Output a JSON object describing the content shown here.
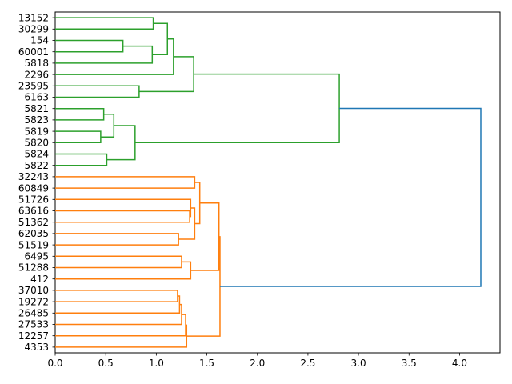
{
  "chart_data": {
    "type": "dendrogram",
    "orientation": "left",
    "title": "",
    "xlabel": "",
    "ylabel": "",
    "xlim": [
      0,
      4.4
    ],
    "x_ticks": [
      "0.0",
      "0.5",
      "1.0",
      "1.5",
      "2.0",
      "2.5",
      "3.0",
      "3.5",
      "4.0"
    ],
    "leaves": [
      "13152",
      "30299",
      "154",
      "60001",
      "5818",
      "2296",
      "23595",
      "6163",
      "5821",
      "5823",
      "5819",
      "5820",
      "5824",
      "5822",
      "32243",
      "60849",
      "51726",
      "63616",
      "51362",
      "62035",
      "51519",
      "6495",
      "51288",
      "412",
      "37010",
      "19272",
      "26485",
      "27533",
      "12257",
      "4353"
    ],
    "colors": {
      "cluster_green": "#2ca02c",
      "cluster_orange": "#ff7f0e",
      "above_threshold": "#1f77b4"
    },
    "merges": [
      {
        "a": "13152",
        "b": "30299",
        "height": 0.97,
        "color": "green"
      },
      {
        "a": "154",
        "b": "60001",
        "height": 0.67,
        "color": "green"
      },
      {
        "a": "{154,60001}",
        "b": "5818",
        "height": 0.96,
        "color": "green"
      },
      {
        "a": "{13152,30299}",
        "b": "{154,60001,5818}",
        "height": 1.11,
        "color": "green"
      },
      {
        "a": "{13152..5818}",
        "b": "2296",
        "height": 1.17,
        "color": "green"
      },
      {
        "a": "23595",
        "b": "6163",
        "height": 0.83,
        "color": "green"
      },
      {
        "a": "{13152..2296}",
        "b": "{23595,6163}",
        "height": 1.37,
        "color": "green"
      },
      {
        "a": "5821",
        "b": "5823",
        "height": 0.48,
        "color": "green"
      },
      {
        "a": "5819",
        "b": "5820",
        "height": 0.45,
        "color": "green"
      },
      {
        "a": "{5821,5823}",
        "b": "{5819,5820}",
        "height": 0.58,
        "color": "green"
      },
      {
        "a": "5824",
        "b": "5822",
        "height": 0.51,
        "color": "green"
      },
      {
        "a": "{5821..5820}",
        "b": "{5824,5822}",
        "height": 0.79,
        "color": "green"
      },
      {
        "a": "{13152..6163}",
        "b": "{5821..5822}",
        "height": 2.81,
        "color": "green"
      },
      {
        "a": "32243",
        "b": "60849",
        "height": 1.38,
        "color": "orange"
      },
      {
        "a": "63616",
        "b": "51362",
        "height": 1.33,
        "color": "orange"
      },
      {
        "a": "51726",
        "b": "{63616,51362}",
        "height": 1.34,
        "color": "orange"
      },
      {
        "a": "62035",
        "b": "51519",
        "height": 1.22,
        "color": "orange"
      },
      {
        "a": "{51726,63616,51362}",
        "b": "{62035,51519}",
        "height": 1.38,
        "color": "orange"
      },
      {
        "a": "{32243,60849}",
        "b": "{51726..51519}",
        "height": 1.43,
        "color": "orange"
      },
      {
        "a": "6495",
        "b": "51288",
        "height": 1.25,
        "color": "orange"
      },
      {
        "a": "{6495,51288}",
        "b": "412",
        "height": 1.34,
        "color": "orange"
      },
      {
        "a": "{32243..51519}",
        "b": "{6495,51288,412}",
        "height": 1.62,
        "color": "orange"
      },
      {
        "a": "37010",
        "b": "19272",
        "height": 1.21,
        "color": "orange"
      },
      {
        "a": "{37010,19272}",
        "b": "26485",
        "height": 1.23,
        "color": "orange"
      },
      {
        "a": "{37010,19272,26485}",
        "b": "27533",
        "height": 1.25,
        "color": "orange"
      },
      {
        "a": "{37010..27533}",
        "b": "12257",
        "height": 1.29,
        "color": "orange"
      },
      {
        "a": "{37010..12257}",
        "b": "4353",
        "height": 1.3,
        "color": "orange"
      },
      {
        "a": "{32243..412}",
        "b": "{37010..4353}",
        "height": 1.63,
        "color": "orange"
      },
      {
        "a": "{13152..5822}",
        "b": "{32243..4353}",
        "height": 4.21,
        "color": "above_threshold"
      }
    ]
  }
}
